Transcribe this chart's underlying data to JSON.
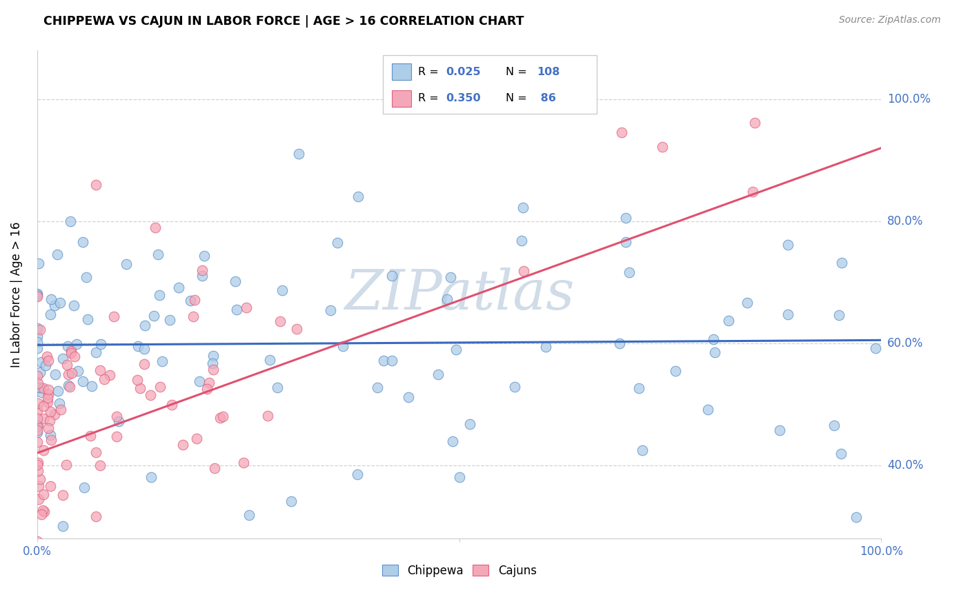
{
  "title": "CHIPPEWA VS CAJUN IN LABOR FORCE | AGE > 16 CORRELATION CHART",
  "source": "Source: ZipAtlas.com",
  "ylabel": "In Labor Force | Age > 16",
  "chippewa_R": 0.025,
  "chippewa_N": 108,
  "cajun_R": 0.35,
  "cajun_N": 86,
  "chippewa_color": "#aecde8",
  "cajun_color": "#f4a7b9",
  "chippewa_edge_color": "#5b8fc9",
  "cajun_edge_color": "#e0607a",
  "chippewa_line_color": "#3a6abf",
  "cajun_line_color": "#e05070",
  "watermark_color": "#d0dce8",
  "background_color": "#ffffff",
  "grid_color": "#cccccc",
  "tick_color": "#4472c4",
  "xlim": [
    0.0,
    1.0
  ],
  "ylim": [
    0.28,
    1.08
  ],
  "yticks": [
    0.4,
    0.6,
    0.8,
    1.0
  ],
  "ytick_labels": [
    "40.0%",
    "60.0%",
    "80.0%",
    "100.0%"
  ],
  "xtick_labels": [
    "0.0%",
    "100.0%"
  ],
  "legend_box_color": "#cccccc",
  "legend_R_N_color": "#4472c4"
}
